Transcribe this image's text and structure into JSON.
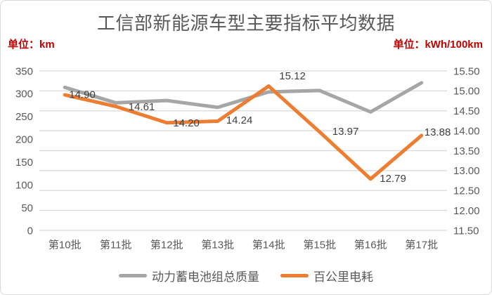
{
  "card": {
    "title": "工信部新能源车型主要指标平均数据",
    "unit_left": "单位：km",
    "unit_right": "单位：kWh/100km"
  },
  "colors": {
    "series_gray": "#a6a6a6",
    "series_orange": "#ed7d31",
    "gridline": "#d9d9d9",
    "tick_text": "#595959",
    "data_label_text": "#404040",
    "title_text": "#595959",
    "unit_text": "#c00000"
  },
  "chart_data": {
    "type": "line",
    "title": "工信部新能源车型主要指标平均数据",
    "categories": [
      "第10批",
      "第11批",
      "第12批",
      "第13批",
      "第14批",
      "第15批",
      "第16批",
      "第17批"
    ],
    "series": [
      {
        "id": "battery_mass",
        "name": "动力蓄电池组总质量",
        "axis": "left",
        "color": "#a6a6a6",
        "values": [
          314,
          280,
          285,
          270,
          304,
          307,
          260,
          324
        ],
        "values_note": "estimated from pixels, no data labels shown"
      },
      {
        "id": "energy_consumption",
        "name": "百公里电耗",
        "axis": "right",
        "color": "#ed7d31",
        "values": [
          14.9,
          14.61,
          14.2,
          14.24,
          15.12,
          13.97,
          12.79,
          13.88
        ],
        "labels": [
          "14.90",
          "14.61",
          "14.20",
          "14.24",
          "15.12",
          "13.97",
          "12.79",
          "13.88"
        ]
      }
    ],
    "left_axis": {
      "unit": "单位：km",
      "min": 0,
      "max": 350,
      "step": 50,
      "ticks": [
        "350",
        "300",
        "250",
        "200",
        "150",
        "100",
        "50",
        "0"
      ]
    },
    "right_axis": {
      "unit": "单位：kWh/100km",
      "min": 11.5,
      "max": 15.5,
      "step": 0.5,
      "ticks": [
        "15.50",
        "15.00",
        "14.50",
        "14.00",
        "13.50",
        "13.00",
        "12.50",
        "12.00",
        "11.50"
      ]
    },
    "grid": true,
    "legend_position": "bottom"
  }
}
